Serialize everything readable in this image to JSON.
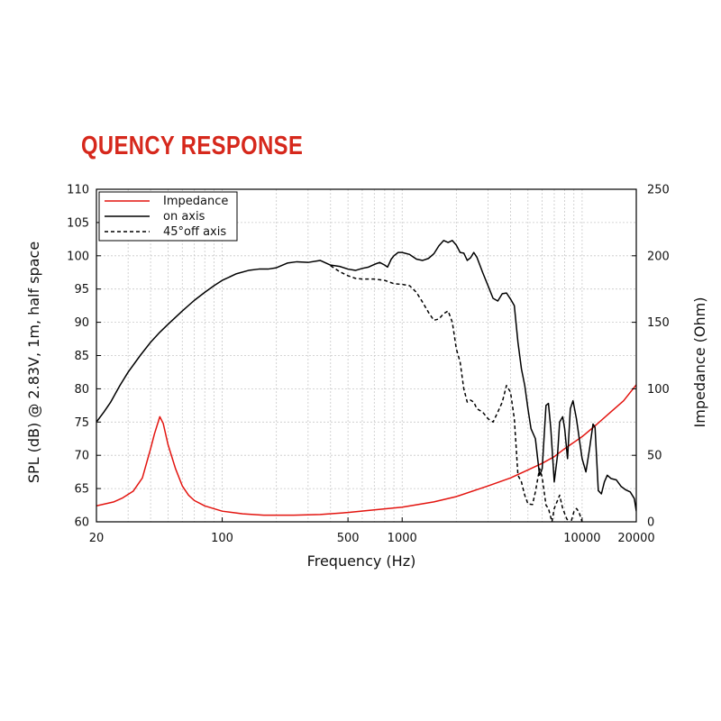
{
  "page": {
    "title": "QUENCY RESPONSE"
  },
  "colors": {
    "impedance": "#e3140f",
    "on_axis": "#000000",
    "off_axis": "#000000",
    "title": "#d6281c"
  },
  "chart_data": {
    "type": "line",
    "title": "QUENCY RESPONSE",
    "xlabel": "Frequency (Hz)",
    "ylabel": "SPL (dB) @ 2.83V, 1m, half space",
    "y2label": "Impedance (Ohm)",
    "xscale": "log",
    "xlim": [
      20,
      20000
    ],
    "ylim": [
      60,
      110
    ],
    "y2lim": [
      0,
      250
    ],
    "grid": true,
    "legend_position": "top-left",
    "x_ticks": [
      {
        "value": 20,
        "label": "20"
      },
      {
        "value": 100,
        "label": "100"
      },
      {
        "value": 500,
        "label": "500"
      },
      {
        "value": 1000,
        "label": "1000"
      },
      {
        "value": 10000,
        "label": "10000"
      },
      {
        "value": 20000,
        "label": "20000"
      }
    ],
    "y_ticks": [
      {
        "value": 60,
        "label": "60"
      },
      {
        "value": 65,
        "label": "65"
      },
      {
        "value": 70,
        "label": "70"
      },
      {
        "value": 75,
        "label": "75"
      },
      {
        "value": 80,
        "label": "80"
      },
      {
        "value": 85,
        "label": "85"
      },
      {
        "value": 90,
        "label": "90"
      },
      {
        "value": 95,
        "label": "95"
      },
      {
        "value": 100,
        "label": "100"
      },
      {
        "value": 105,
        "label": "105"
      },
      {
        "value": 110,
        "label": "110"
      }
    ],
    "y2_ticks": [
      {
        "value": 0,
        "label": "0"
      },
      {
        "value": 50,
        "label": "50"
      },
      {
        "value": 100,
        "label": "100"
      },
      {
        "value": 150,
        "label": "150"
      },
      {
        "value": 200,
        "label": "200"
      },
      {
        "value": 250,
        "label": "250"
      }
    ],
    "series": [
      {
        "name": "Impedance",
        "axis": "right",
        "style": "solid",
        "color": "#e3140f",
        "points": [
          [
            20,
            12
          ],
          [
            25,
            15
          ],
          [
            28,
            18
          ],
          [
            32,
            23
          ],
          [
            36,
            33
          ],
          [
            40,
            55
          ],
          [
            42,
            66
          ],
          [
            45,
            79
          ],
          [
            47,
            74
          ],
          [
            50,
            58
          ],
          [
            55,
            40
          ],
          [
            60,
            27
          ],
          [
            65,
            20
          ],
          [
            70,
            16
          ],
          [
            80,
            12
          ],
          [
            100,
            8
          ],
          [
            130,
            6
          ],
          [
            170,
            5
          ],
          [
            250,
            5
          ],
          [
            350,
            5.5
          ],
          [
            500,
            7
          ],
          [
            700,
            9
          ],
          [
            1000,
            11
          ],
          [
            1500,
            15
          ],
          [
            2000,
            19
          ],
          [
            3000,
            27
          ],
          [
            4000,
            33
          ],
          [
            5000,
            39
          ],
          [
            6000,
            44
          ],
          [
            7000,
            49
          ],
          [
            8000,
            55
          ],
          [
            10000,
            64
          ],
          [
            12000,
            73
          ],
          [
            14000,
            81
          ],
          [
            17000,
            91
          ],
          [
            20000,
            103
          ]
        ]
      },
      {
        "name": "on axis",
        "axis": "left",
        "style": "solid",
        "color": "#000000",
        "points": [
          [
            20,
            75
          ],
          [
            22,
            76.5
          ],
          [
            24,
            78
          ],
          [
            27,
            80.5
          ],
          [
            30,
            82.5
          ],
          [
            35,
            85
          ],
          [
            40,
            87
          ],
          [
            45,
            88.5
          ],
          [
            50,
            89.7
          ],
          [
            60,
            91.7
          ],
          [
            70,
            93.3
          ],
          [
            80,
            94.5
          ],
          [
            90,
            95.5
          ],
          [
            100,
            96.3
          ],
          [
            120,
            97.3
          ],
          [
            140,
            97.8
          ],
          [
            160,
            98
          ],
          [
            180,
            98
          ],
          [
            200,
            98.2
          ],
          [
            230,
            98.9
          ],
          [
            260,
            99.1
          ],
          [
            300,
            99
          ],
          [
            350,
            99.3
          ],
          [
            400,
            98.6
          ],
          [
            450,
            98.4
          ],
          [
            500,
            98
          ],
          [
            550,
            97.8
          ],
          [
            600,
            98.1
          ],
          [
            650,
            98.3
          ],
          [
            700,
            98.7
          ],
          [
            750,
            99
          ],
          [
            800,
            98.6
          ],
          [
            830,
            98.3
          ],
          [
            870,
            99.5
          ],
          [
            900,
            100
          ],
          [
            950,
            100.5
          ],
          [
            1000,
            100.5
          ],
          [
            1100,
            100.2
          ],
          [
            1200,
            99.5
          ],
          [
            1300,
            99.3
          ],
          [
            1400,
            99.6
          ],
          [
            1500,
            100.3
          ],
          [
            1600,
            101.5
          ],
          [
            1700,
            102.3
          ],
          [
            1800,
            102
          ],
          [
            1900,
            102.3
          ],
          [
            2000,
            101.6
          ],
          [
            2100,
            100.5
          ],
          [
            2200,
            100.4
          ],
          [
            2300,
            99.3
          ],
          [
            2400,
            99.7
          ],
          [
            2500,
            100.5
          ],
          [
            2600,
            99.8
          ],
          [
            2800,
            97.5
          ],
          [
            3000,
            95.5
          ],
          [
            3200,
            93.6
          ],
          [
            3400,
            93.2
          ],
          [
            3600,
            94.3
          ],
          [
            3800,
            94.4
          ],
          [
            4000,
            93.5
          ],
          [
            4200,
            92.5
          ],
          [
            4400,
            87
          ],
          [
            4600,
            83
          ],
          [
            4800,
            80.5
          ],
          [
            5000,
            77
          ],
          [
            5200,
            74
          ],
          [
            5500,
            72.5
          ],
          [
            5800,
            67
          ],
          [
            6000,
            68
          ],
          [
            6300,
            77.5
          ],
          [
            6500,
            77.8
          ],
          [
            6700,
            74
          ],
          [
            7000,
            66
          ],
          [
            7300,
            70
          ],
          [
            7500,
            75
          ],
          [
            7800,
            75.8
          ],
          [
            8000,
            74
          ],
          [
            8300,
            69.5
          ],
          [
            8600,
            77
          ],
          [
            8900,
            78.2
          ],
          [
            9300,
            75.5
          ],
          [
            9700,
            72
          ],
          [
            10000,
            69.5
          ],
          [
            10500,
            67.5
          ],
          [
            11000,
            71
          ],
          [
            11500,
            74.7
          ],
          [
            11800,
            74.2
          ],
          [
            12300,
            64.7
          ],
          [
            12800,
            64.2
          ],
          [
            13300,
            66
          ],
          [
            13800,
            67
          ],
          [
            14500,
            66.5
          ],
          [
            15500,
            66.3
          ],
          [
            16500,
            65.3
          ],
          [
            17500,
            64.8
          ],
          [
            18500,
            64.5
          ],
          [
            19500,
            63.5
          ],
          [
            20000,
            61.6
          ]
        ]
      },
      {
        "name": "45°off axis",
        "axis": "left",
        "style": "dashed",
        "color": "#000000",
        "points": [
          [
            400,
            98.5
          ],
          [
            450,
            97.6
          ],
          [
            500,
            97
          ],
          [
            550,
            96.6
          ],
          [
            600,
            96.5
          ],
          [
            700,
            96.5
          ],
          [
            800,
            96.3
          ],
          [
            900,
            95.8
          ],
          [
            1000,
            95.7
          ],
          [
            1100,
            95.5
          ],
          [
            1200,
            94.5
          ],
          [
            1300,
            93
          ],
          [
            1400,
            91.5
          ],
          [
            1500,
            90.3
          ],
          [
            1600,
            90.5
          ],
          [
            1700,
            91.3
          ],
          [
            1800,
            91.7
          ],
          [
            1900,
            90
          ],
          [
            2000,
            86
          ],
          [
            2100,
            84
          ],
          [
            2200,
            80
          ],
          [
            2300,
            78
          ],
          [
            2400,
            78.3
          ],
          [
            2500,
            78
          ],
          [
            2600,
            77
          ],
          [
            2800,
            76.5
          ],
          [
            3000,
            75.5
          ],
          [
            3200,
            75
          ],
          [
            3400,
            76.5
          ],
          [
            3600,
            78
          ],
          [
            3800,
            80.5
          ],
          [
            4000,
            79.5
          ],
          [
            4200,
            75.5
          ],
          [
            4400,
            67
          ],
          [
            4600,
            66
          ],
          [
            4800,
            64
          ],
          [
            5000,
            62.7
          ],
          [
            5300,
            62.6
          ],
          [
            5500,
            64.5
          ],
          [
            5800,
            68
          ],
          [
            6000,
            66.7
          ],
          [
            6300,
            62.5
          ],
          [
            6500,
            62
          ],
          [
            6800,
            60
          ],
          [
            7000,
            62
          ],
          [
            7500,
            64
          ],
          [
            7800,
            62
          ],
          [
            8200,
            60.5
          ],
          [
            8600,
            59.6
          ],
          [
            9000,
            61.5
          ],
          [
            9300,
            62
          ],
          [
            9600,
            61.5
          ],
          [
            10000,
            60
          ]
        ]
      }
    ]
  }
}
